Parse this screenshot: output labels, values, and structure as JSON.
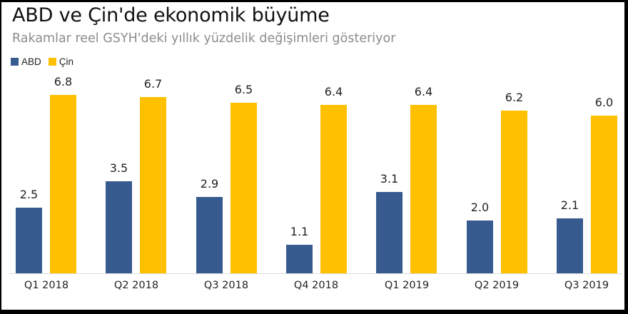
{
  "header": {
    "title": "ABD ve Çin'de ekonomik büyüme",
    "subtitle": "Rakamlar reel GSYH'deki yıllık yüzdelik değişimleri gösteriyor"
  },
  "legend": [
    {
      "label": "ABD",
      "color": "#375b8f"
    },
    {
      "label": "Çin",
      "color": "#ffc000"
    }
  ],
  "chart_data": {
    "type": "bar",
    "title": "ABD ve Çin'de ekonomik büyüme",
    "subtitle": "Rakamlar reel GSYH'deki yıllık yüzdelik değişimleri gösteriyor",
    "xlabel": "",
    "ylabel": "",
    "grid": false,
    "legend_position": "top-left",
    "categories": [
      "Q1 2018",
      "Q2 2018",
      "Q3 2018",
      "Q4 2018",
      "Q1 2019",
      "Q2 2019",
      "Q3 2019"
    ],
    "series": [
      {
        "name": "ABD",
        "color": "#375b8f",
        "values": [
          2.5,
          3.5,
          2.9,
          1.1,
          3.1,
          2.0,
          2.1
        ]
      },
      {
        "name": "Çin",
        "color": "#ffc000",
        "values": [
          6.8,
          6.7,
          6.5,
          6.4,
          6.4,
          6.2,
          6.0
        ]
      }
    ],
    "value_labels": {
      "ABD": [
        "2.5",
        "3.5",
        "2.9",
        "1.1",
        "3.1",
        "2.0",
        "2.1"
      ],
      "Çin": [
        "6.8",
        "6.7",
        "6.5",
        "6.4",
        "6.4",
        "6.2",
        "6.0"
      ]
    }
  }
}
